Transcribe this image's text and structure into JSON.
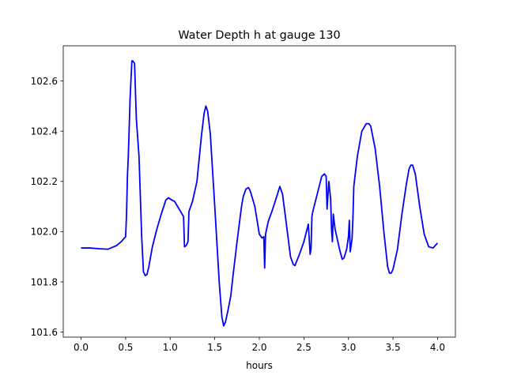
{
  "chart_data": {
    "type": "line",
    "title": "Water Depth h at gauge 130",
    "xlabel": "hours",
    "ylabel": "",
    "xlim": [
      -0.2,
      4.2
    ],
    "ylim": [
      101.58,
      102.74
    ],
    "xticks": [
      0.0,
      0.5,
      1.0,
      1.5,
      2.0,
      2.5,
      3.0,
      3.5,
      4.0
    ],
    "xtick_labels": [
      "0.0",
      "0.5",
      "1.0",
      "1.5",
      "2.0",
      "2.5",
      "3.0",
      "3.5",
      "4.0"
    ],
    "yticks": [
      101.6,
      101.8,
      102.0,
      102.2,
      102.4,
      102.6
    ],
    "ytick_labels": [
      "101.6",
      "101.8",
      "102.0",
      "102.2",
      "102.4",
      "102.6"
    ],
    "grid": false,
    "series": [
      {
        "color": "#0000ff",
        "x": [
          0.0,
          0.1,
          0.2,
          0.3,
          0.4,
          0.45,
          0.5,
          0.51,
          0.52,
          0.53,
          0.55,
          0.57,
          0.58,
          0.6,
          0.62,
          0.65,
          0.68,
          0.7,
          0.72,
          0.74,
          0.76,
          0.8,
          0.85,
          0.9,
          0.95,
          0.98,
          1.0,
          1.05,
          1.1,
          1.15,
          1.16,
          1.18,
          1.2,
          1.21,
          1.25,
          1.3,
          1.35,
          1.38,
          1.4,
          1.42,
          1.45,
          1.5,
          1.55,
          1.58,
          1.6,
          1.62,
          1.65,
          1.68,
          1.7,
          1.75,
          1.8,
          1.82,
          1.85,
          1.88,
          1.9,
          1.95,
          2.0,
          2.03,
          2.05,
          2.06,
          2.07,
          2.1,
          2.15,
          2.2,
          2.23,
          2.26,
          2.3,
          2.35,
          2.38,
          2.4,
          2.45,
          2.5,
          2.55,
          2.57,
          2.58,
          2.59,
          2.6,
          2.65,
          2.7,
          2.73,
          2.75,
          2.76,
          2.78,
          2.8,
          2.81,
          2.82,
          2.83,
          2.85,
          2.9,
          2.93,
          2.95,
          2.98,
          3.0,
          3.01,
          3.02,
          3.04,
          3.05,
          3.06,
          3.1,
          3.15,
          3.2,
          3.23,
          3.25,
          3.3,
          3.35,
          3.4,
          3.44,
          3.46,
          3.48,
          3.5,
          3.55,
          3.6,
          3.65,
          3.68,
          3.7,
          3.72,
          3.75,
          3.8,
          3.85,
          3.9,
          3.95,
          4.0
        ],
        "y": [
          101.935,
          101.935,
          101.932,
          101.93,
          101.945,
          101.96,
          101.98,
          102.07,
          102.22,
          102.3,
          102.53,
          102.68,
          102.68,
          102.67,
          102.45,
          102.3,
          101.98,
          101.84,
          101.825,
          101.83,
          101.86,
          101.94,
          102.01,
          102.07,
          102.125,
          102.135,
          102.13,
          102.12,
          102.09,
          102.06,
          101.94,
          101.945,
          101.96,
          102.08,
          102.12,
          102.2,
          102.38,
          102.47,
          102.5,
          102.48,
          102.39,
          102.1,
          101.8,
          101.66,
          101.625,
          101.64,
          101.69,
          101.745,
          101.81,
          101.96,
          102.1,
          102.14,
          102.17,
          102.175,
          102.16,
          102.1,
          101.99,
          101.975,
          101.98,
          101.855,
          101.99,
          102.04,
          102.09,
          102.145,
          102.18,
          102.15,
          102.04,
          101.9,
          101.87,
          101.865,
          101.91,
          101.96,
          102.03,
          101.91,
          101.93,
          102.06,
          102.08,
          102.15,
          102.22,
          102.23,
          102.22,
          102.09,
          102.2,
          102.13,
          102.01,
          101.96,
          102.07,
          102.01,
          101.93,
          101.89,
          101.895,
          101.93,
          101.98,
          102.045,
          101.92,
          101.97,
          102.05,
          102.18,
          102.3,
          102.4,
          102.43,
          102.43,
          102.42,
          102.33,
          102.18,
          101.99,
          101.86,
          101.835,
          101.835,
          101.85,
          101.93,
          102.07,
          102.19,
          102.25,
          102.265,
          102.265,
          102.23,
          102.1,
          101.99,
          101.94,
          101.935,
          101.955
        ]
      }
    ]
  }
}
